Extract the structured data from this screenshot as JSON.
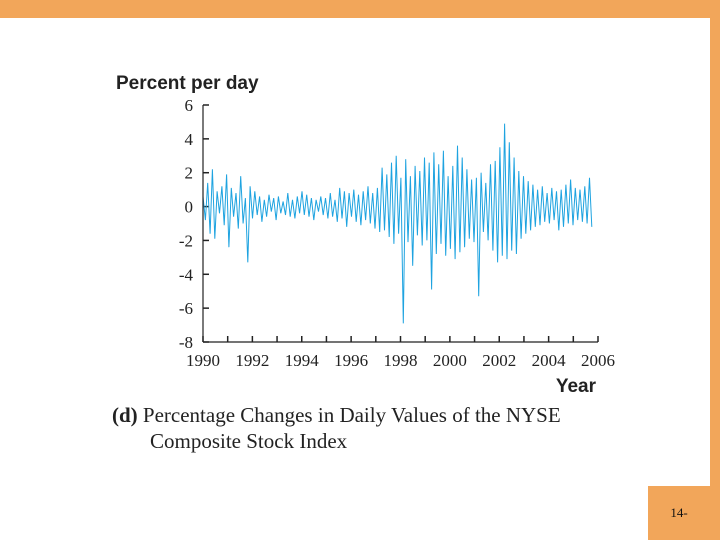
{
  "colors": {
    "accent": "#f2a65a",
    "series": "#1ea3e0",
    "axis": "#222222"
  },
  "slide": {
    "page_number": "14-"
  },
  "caption": {
    "prefix": "(d)",
    "line1": "Percentage Changes in Daily Values of the NYSE",
    "line2": "Composite Stock Index"
  },
  "chart_data": {
    "type": "line",
    "title": "",
    "ylabel": "Percent per day",
    "xlabel": "Year",
    "ylim": [
      -8,
      6
    ],
    "xlim": [
      1990,
      2006
    ],
    "y_ticks": [
      6,
      4,
      2,
      0,
      -2,
      -4,
      -6,
      -8
    ],
    "y_tick_labels": [
      "6",
      "4",
      "2",
      "0",
      "-2",
      "-4",
      "-6",
      "-8"
    ],
    "x_ticks": [
      1990,
      1992,
      1994,
      1996,
      1998,
      2000,
      2002,
      2004,
      2006
    ],
    "x_tick_labels": [
      "1990",
      "1992",
      "1994",
      "1996",
      "1998",
      "2000",
      "2002",
      "2004",
      "2006"
    ],
    "series": [
      {
        "name": "NYSE Composite daily % change",
        "x_start": 1990,
        "x_end": 2005.75,
        "values": [
          0.6,
          -0.8,
          1.4,
          -1.6,
          2.2,
          -1.9,
          0.9,
          -0.4,
          1.2,
          -1.1,
          1.9,
          -2.4,
          1.1,
          -0.6,
          0.8,
          -1.3,
          1.8,
          -1.0,
          0.5,
          -3.3,
          1.2,
          -0.7,
          0.9,
          -0.5,
          0.6,
          -0.9,
          0.4,
          -0.6,
          0.7,
          -0.3,
          0.5,
          -0.8,
          0.6,
          -0.4,
          0.3,
          -0.5,
          0.8,
          -0.6,
          0.4,
          -0.7,
          0.6,
          -0.4,
          0.9,
          -0.5,
          0.7,
          -0.6,
          0.5,
          -0.8,
          0.4,
          -0.3,
          0.6,
          -0.5,
          0.5,
          -0.7,
          0.8,
          -0.6,
          0.4,
          -0.9,
          1.1,
          -0.7,
          0.9,
          -1.2,
          0.8,
          -0.6,
          1.0,
          -0.9,
          0.7,
          -1.1,
          0.9,
          -0.8,
          1.2,
          -1.0,
          0.8,
          -1.3,
          1.1,
          -1.5,
          2.3,
          -1.4,
          1.9,
          -1.8,
          2.6,
          -2.2,
          3.0,
          -1.6,
          1.7,
          -6.9,
          2.8,
          -2.1,
          1.8,
          -3.5,
          2.4,
          -1.7,
          2.1,
          -2.3,
          2.9,
          -2.0,
          2.6,
          -4.9,
          3.2,
          -2.8,
          2.5,
          -2.2,
          3.3,
          -2.9,
          1.8,
          -2.5,
          2.4,
          -3.1,
          3.6,
          -2.7,
          2.9,
          -2.4,
          2.2,
          -1.9,
          1.6,
          -2.1,
          1.7,
          -5.3,
          2.0,
          -1.5,
          1.4,
          -2.0,
          2.5,
          -2.6,
          2.7,
          -3.3,
          3.5,
          -2.9,
          4.9,
          -3.1,
          3.8,
          -2.6,
          2.9,
          -2.8,
          2.1,
          -1.9,
          1.8,
          -1.6,
          1.5,
          -1.4,
          1.3,
          -1.2,
          1.0,
          -1.1,
          1.2,
          -0.9,
          0.8,
          -1.0,
          1.1,
          -0.8,
          0.9,
          -1.4,
          1.0,
          -1.2,
          1.3,
          -1.0,
          1.6,
          -1.1,
          1.1,
          -0.8,
          1.0,
          -0.9,
          1.2,
          -1.0,
          1.7,
          -1.2
        ]
      }
    ]
  }
}
